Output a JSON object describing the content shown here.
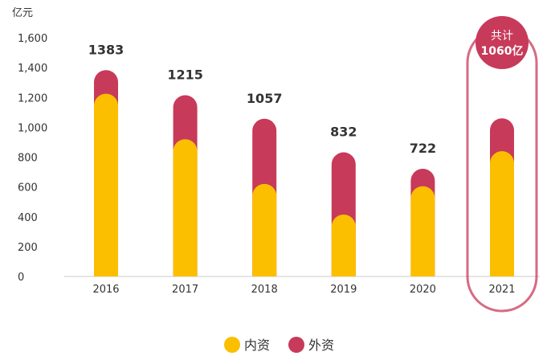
{
  "chart_data": {
    "type": "bar",
    "stacked": true,
    "y_unit": "亿元",
    "categories": [
      "2016",
      "2017",
      "2018",
      "2019",
      "2020",
      "2021"
    ],
    "series": [
      {
        "name": "内资",
        "color": "#FBBF00",
        "values": [
          1225,
          920,
          620,
          415,
          605,
          840
        ]
      },
      {
        "name": "外资",
        "color": "#C83A5A",
        "values": [
          158,
          295,
          437,
          417,
          117,
          220
        ]
      }
    ],
    "totals": [
      "1383",
      "1215",
      "1057",
      "832",
      "722",
      ""
    ],
    "ylim": [
      0,
      1600
    ],
    "y_ticks": [
      "0",
      "200",
      "400",
      "600",
      "800",
      "1,000",
      "1,200",
      "1,400",
      "1,600"
    ],
    "grid": false,
    "legend_position": "bottom-center",
    "highlight": {
      "category": "2021",
      "label_line1": "共计",
      "label_line2": "1060亿",
      "color": "#C83A5A"
    }
  }
}
